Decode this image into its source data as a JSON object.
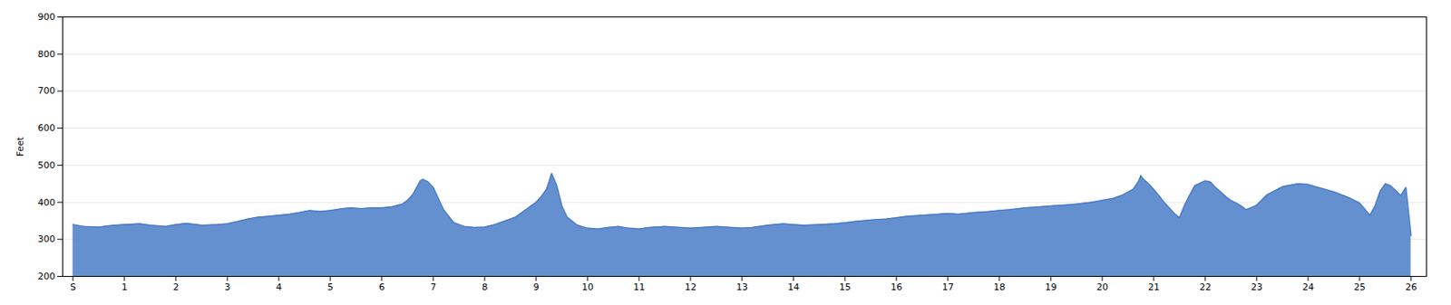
{
  "chart_data": {
    "type": "area",
    "ylabel": "Feet",
    "color": "#4a7cc7",
    "grid": true,
    "xlim": [
      -0.2,
      26.3
    ],
    "xticks": [
      {
        "value": 0,
        "label": "S"
      },
      1,
      2,
      3,
      4,
      5,
      6,
      7,
      8,
      9,
      10,
      11,
      12,
      13,
      14,
      15,
      16,
      17,
      18,
      19,
      20,
      21,
      22,
      23,
      24,
      25,
      26
    ],
    "ylim": [
      200,
      900
    ],
    "yticks": [
      200,
      300,
      400,
      500,
      600,
      700,
      800,
      900
    ],
    "x": [
      0,
      0.2,
      0.5,
      0.8,
      1.0,
      1.3,
      1.5,
      1.8,
      2.0,
      2.2,
      2.5,
      2.8,
      3.0,
      3.2,
      3.4,
      3.6,
      3.8,
      4.0,
      4.2,
      4.4,
      4.6,
      4.8,
      5.0,
      5.2,
      5.4,
      5.6,
      5.8,
      6.0,
      6.2,
      6.4,
      6.5,
      6.6,
      6.7,
      6.75,
      6.8,
      6.9,
      7.0,
      7.2,
      7.4,
      7.6,
      7.8,
      8.0,
      8.2,
      8.4,
      8.6,
      8.8,
      9.0,
      9.1,
      9.2,
      9.25,
      9.3,
      9.35,
      9.4,
      9.5,
      9.6,
      9.8,
      10.0,
      10.2,
      10.4,
      10.6,
      10.8,
      11.0,
      11.2,
      11.5,
      11.8,
      12.0,
      12.2,
      12.5,
      12.8,
      13.0,
      13.2,
      13.5,
      13.8,
      14.0,
      14.2,
      14.5,
      14.8,
      15.0,
      15.2,
      15.5,
      15.8,
      16.0,
      16.2,
      16.5,
      16.8,
      17.0,
      17.2,
      17.5,
      17.8,
      18.0,
      18.2,
      18.5,
      18.8,
      19.0,
      19.2,
      19.5,
      19.8,
      20.0,
      20.2,
      20.4,
      20.6,
      20.7,
      20.75,
      20.8,
      20.9,
      21.0,
      21.1,
      21.2,
      21.3,
      21.4,
      21.5,
      21.6,
      21.7,
      21.8,
      22.0,
      22.1,
      22.2,
      22.3,
      22.4,
      22.5,
      22.6,
      22.7,
      22.8,
      23.0,
      23.2,
      23.5,
      23.8,
      24.0,
      24.2,
      24.5,
      24.8,
      25.0,
      25.1,
      25.2,
      25.3,
      25.4,
      25.5,
      25.6,
      25.7,
      25.8,
      25.9,
      26.0
    ],
    "values": [
      340,
      335,
      333,
      338,
      340,
      342,
      338,
      335,
      340,
      343,
      338,
      340,
      342,
      348,
      355,
      360,
      362,
      365,
      368,
      372,
      378,
      375,
      378,
      382,
      385,
      383,
      385,
      385,
      388,
      395,
      405,
      420,
      445,
      458,
      462,
      455,
      440,
      380,
      345,
      335,
      332,
      333,
      340,
      350,
      360,
      380,
      400,
      415,
      435,
      455,
      478,
      462,
      445,
      390,
      360,
      338,
      330,
      328,
      332,
      335,
      330,
      328,
      332,
      335,
      332,
      330,
      332,
      335,
      332,
      330,
      332,
      338,
      342,
      340,
      338,
      340,
      342,
      345,
      348,
      352,
      355,
      358,
      362,
      365,
      368,
      370,
      368,
      372,
      375,
      378,
      380,
      385,
      388,
      390,
      392,
      395,
      400,
      405,
      410,
      420,
      435,
      455,
      472,
      462,
      450,
      435,
      418,
      400,
      385,
      370,
      358,
      392,
      420,
      445,
      458,
      455,
      440,
      428,
      415,
      405,
      398,
      390,
      380,
      392,
      420,
      442,
      450,
      448,
      440,
      428,
      412,
      398,
      382,
      365,
      390,
      430,
      450,
      445,
      432,
      418,
      440,
      310
    ]
  }
}
